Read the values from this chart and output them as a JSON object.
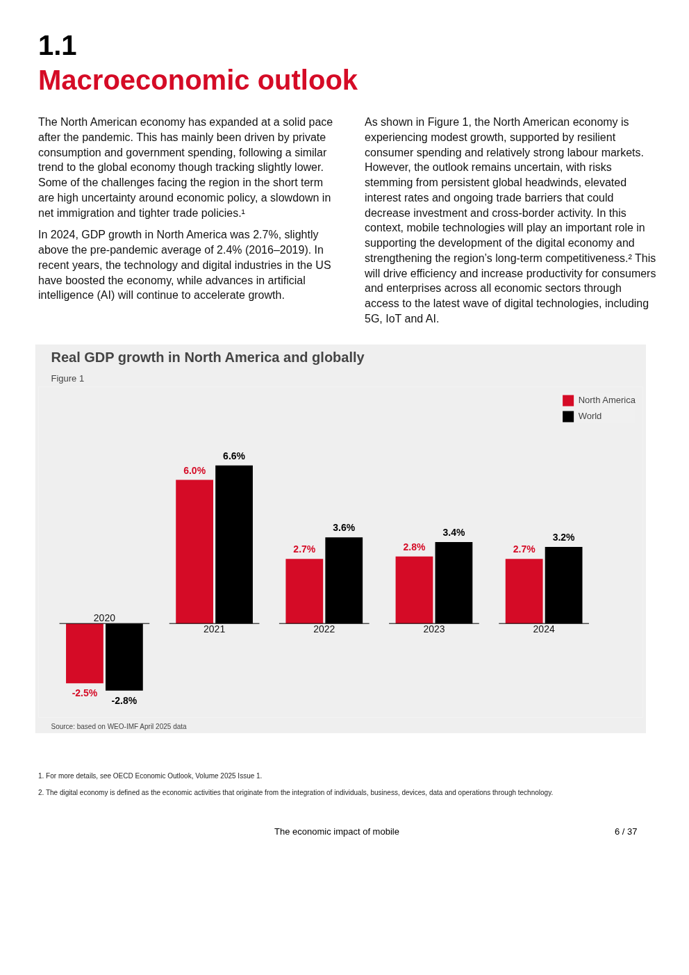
{
  "chart_data": {
    "type": "bar",
    "subtitle": "Figure 1",
    "title": "Real GDP growth in North America and globally",
    "categories": [
      "2020",
      "2021",
      "2022",
      "2023",
      "2024"
    ],
    "series": [
      {
        "name": "North America",
        "color": "#d50b26",
        "values": [
          -2.5,
          6.0,
          2.7,
          2.8,
          2.7
        ],
        "value_labels": [
          "-2.5%",
          "6.0%",
          "2.7%",
          "2.8%",
          "2.7%"
        ]
      },
      {
        "name": "World",
        "color": "#000000",
        "values": [
          -2.8,
          6.6,
          3.6,
          3.4,
          3.2
        ],
        "value_labels": [
          "-2.8%",
          "6.6%",
          "3.6%",
          "3.4%",
          "3.2%"
        ]
      }
    ],
    "legend": "top right",
    "grid": false,
    "annotations": [
      "1.1",
      "Macroeconomic outlook",
      "The North American economy has expanded at a solid pace after the pandemic. This has mainly been driven by private consumption and government spending, following a similar trend to the global economy though tracking slightly lower. Some of the challenges facing the region in the short term are high uncertainty around economic policy, a slowdown in net immigration and tighter trade policies.¹",
      "In 2024, GDP growth in North America was 2.7%, slightly above the pre-pandemic average of 2.4% (2016–2019). In recent years, the technology and digital industries in the US have boosted the economy, while advances in artificial intelligence (AI) will continue to accelerate growth.",
      "As shown in Figure 1, the North American economy is experiencing modest growth, supported by resilient consumer spending and relatively strong labour markets. However, the outlook remains uncertain, with risks stemming from persistent global headwinds, elevated interest rates and ongoing trade barriers that could decrease investment and cross-border activity. In this context, mobile technologies will play an important role in supporting the development of the digital economy and strengthening the region’s long-term competitiveness.² This will drive efficiency and increase productivity for consumers and enterprises across all economic sectors through access to the latest wave of digital technologies, including 5G, IoT and AI.",
      "Source: based on WEO-IMF April 2025 data",
      "1.    For more details, see OECD Economic Outlook, Volume 2025 Issue 1.",
      "2.    The digital economy is defined as the economic activities that originate from the integration of individuals, business, devices, data and operations through technology.",
      "The economic impact of mobile",
      "6 / 37"
    ]
  }
}
